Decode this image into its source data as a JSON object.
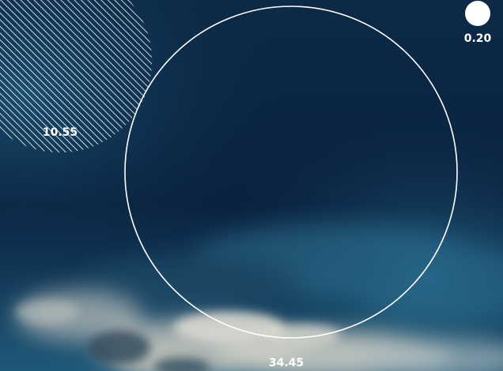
{
  "chart_data": {
    "type": "bubble",
    "items": [
      {
        "value": 10.55,
        "label": "10.55",
        "style": "hatched"
      },
      {
        "value": 34.45,
        "label": "34.45",
        "style": "outline"
      },
      {
        "value": 0.2,
        "label": "0.20",
        "style": "solid"
      }
    ]
  },
  "colors": {
    "sky_top": "#0c2844",
    "sky_mid": "#0a2440",
    "sky_bottom": "#1d5a7a",
    "cloud": "#cfd2cc",
    "mark": "#ffffff"
  }
}
